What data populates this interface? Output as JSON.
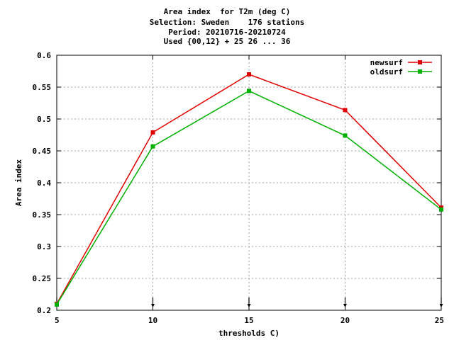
{
  "chart_data": {
    "type": "line",
    "title_lines": [
      "Area index  for T2m (deg C)",
      "Selection: Sweden    176 stations",
      "Period: 20210716-20210724",
      "Used {00,12} + 25 26 ... 36"
    ],
    "xlabel": "thresholds C)",
    "ylabel": "Area index",
    "x": [
      5,
      10,
      15,
      20,
      25
    ],
    "xlim": [
      5,
      25
    ],
    "ylim": [
      0.2,
      0.6
    ],
    "xticks": [
      "5",
      "10",
      "15",
      "20",
      "25"
    ],
    "yticks": [
      "0.2",
      "0.25",
      "0.3",
      "0.35",
      "0.4",
      "0.45",
      "0.5",
      "0.55",
      "0.6"
    ],
    "grid": true,
    "legend_position": "top-right",
    "series": [
      {
        "name": "newsurf",
        "color": "#e00000",
        "values": [
          0.21,
          0.479,
          0.57,
          0.514,
          0.361
        ]
      },
      {
        "name": "oldsurf",
        "color": "#00b000",
        "values": [
          0.209,
          0.457,
          0.544,
          0.474,
          0.358
        ]
      }
    ]
  }
}
